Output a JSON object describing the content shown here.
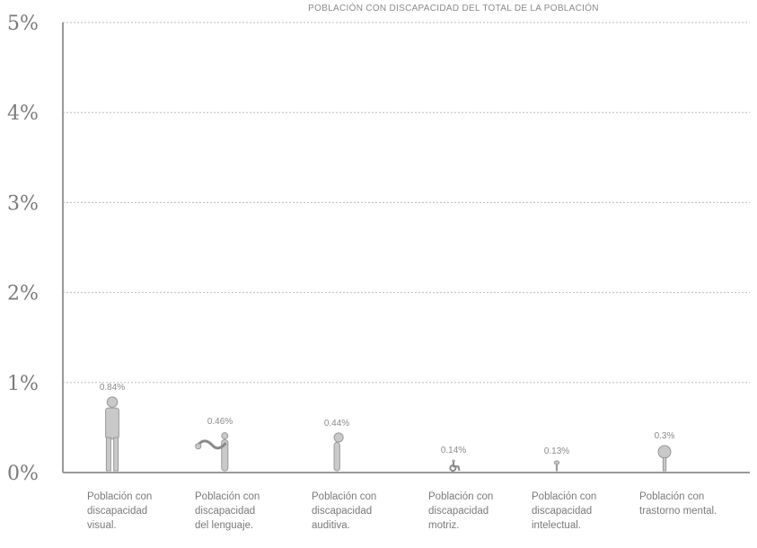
{
  "chart_data": {
    "type": "bar",
    "title": "POBLACIÓN CON DISCAPACIDAD DEL TOTAL DE LA POBLACIÓN",
    "xlabel": "",
    "ylabel": "",
    "ylim": [
      0,
      5
    ],
    "yticks": [
      "0%",
      "1%",
      "2%",
      "3%",
      "4%",
      "5%"
    ],
    "grid": true,
    "categories": [
      [
        "Población con",
        "discapacidad",
        "visual."
      ],
      [
        "Población con",
        "discapacidad",
        "del lenguaje."
      ],
      [
        "Población con",
        "discapacidad",
        "auditiva."
      ],
      [
        "Población con",
        "discapacidad",
        "motriz."
      ],
      [
        "Población con",
        "discapacidad",
        "intelectual."
      ],
      [
        "Población con",
        "trastorno mental."
      ]
    ],
    "icons": [
      "person-standing-icon",
      "speech-bubble-person-icon",
      "person-with-ear-icon",
      "wheelchair-icon",
      "brain-figure-icon",
      "mental-health-tree-icon"
    ],
    "values": [
      0.84,
      0.46,
      0.44,
      0.14,
      0.13,
      0.3
    ],
    "value_labels": [
      "0.84%",
      "0.46%",
      "0.44%",
      "0.14%",
      "0.13%",
      "0.3%"
    ],
    "colors": {
      "figure": "#c9c9c9",
      "outline": "#9a9a9a",
      "grid": "#bdbdbd"
    }
  }
}
